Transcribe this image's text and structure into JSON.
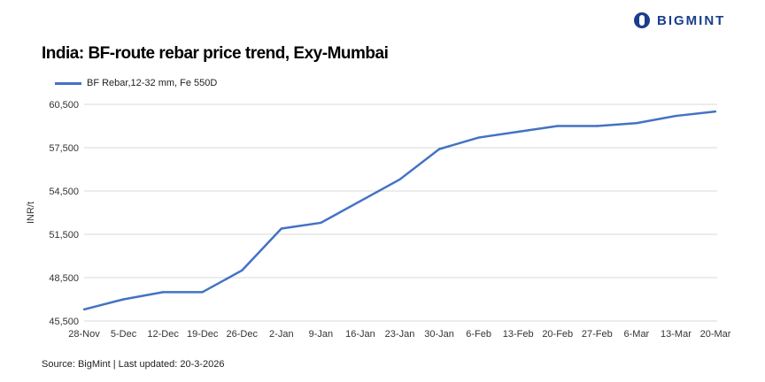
{
  "logo_text": "BIGMINT",
  "source": "Source: BigMint | Last updated: 20-3-2026",
  "chart_data": {
    "type": "line",
    "title": "India: BF-route rebar price trend, Exy-Mumbai",
    "ylabel": "INR/t",
    "xlabel": "",
    "ylim": [
      45500,
      60500
    ],
    "yticks": [
      45500,
      48500,
      51500,
      54500,
      57500,
      60500
    ],
    "ytick_labels": [
      "45,500",
      "48,500",
      "51,500",
      "54,500",
      "57,500",
      "60,500"
    ],
    "grid": "horizontal",
    "legend_position": "top-left",
    "categories": [
      "28-Nov",
      "5-Dec",
      "12-Dec",
      "19-Dec",
      "26-Dec",
      "2-Jan",
      "9-Jan",
      "16-Jan",
      "23-Jan",
      "30-Jan",
      "6-Feb",
      "13-Feb",
      "20-Feb",
      "27-Feb",
      "6-Mar",
      "13-Mar",
      "20-Mar"
    ],
    "series": [
      {
        "name": "BF Rebar,12-32 mm, Fe 550D",
        "color": "#4472C4",
        "values": [
          46300,
          47000,
          47500,
          47500,
          49000,
          51900,
          52300,
          53800,
          55300,
          57400,
          58200,
          58600,
          59000,
          59000,
          59200,
          59700,
          60000
        ]
      }
    ]
  }
}
